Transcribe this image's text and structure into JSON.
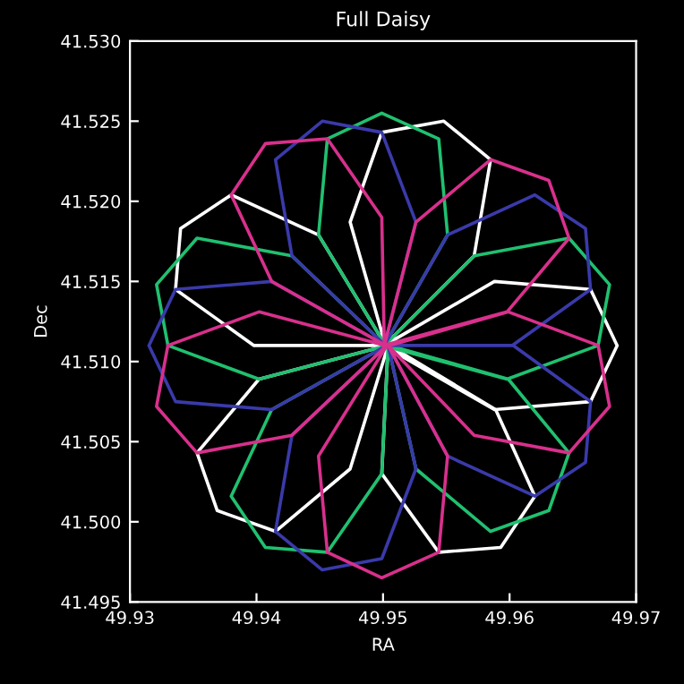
{
  "chart_data": {
    "type": "line",
    "title": "Full Daisy",
    "xlabel": "RA",
    "ylabel": "Dec",
    "xlim": [
      49.93,
      49.97
    ],
    "ylim": [
      41.495,
      41.53
    ],
    "xticks": [
      49.93,
      49.94,
      49.95,
      49.96,
      49.97
    ],
    "yticks": [
      41.495,
      {
        "value": 41.5,
        "label": "41.500"
      },
      41.505,
      {
        "value": 41.51,
        "label": "41.510"
      },
      41.515,
      {
        "value": 41.52,
        "label": "41.520"
      },
      41.525,
      {
        "value": 41.53,
        "label": "41.530"
      }
    ],
    "grid": false,
    "marker": "none",
    "line_style": "solid",
    "series": [
      {
        "color": "#ffffff",
        "x": [
          49.95,
          49.9588,
          49.9664,
          49.9685,
          49.9664,
          49.9588,
          49.9501,
          49.9572,
          49.9585,
          49.9548,
          49.9499,
          49.9474,
          49.9502,
          49.9449,
          49.938,
          49.934,
          49.9336,
          49.9398,
          49.9503,
          49.9402,
          49.9353,
          49.9369,
          49.9415,
          49.9474,
          49.9504,
          49.9499,
          49.9544,
          49.9593,
          49.962,
          49.9589,
          49.9505
        ],
        "values": [
          41.511,
          41.507,
          41.5075,
          41.511,
          41.5145,
          41.515,
          41.511,
          41.5166,
          41.5226,
          41.525,
          41.5243,
          41.5187,
          41.511,
          41.5179,
          41.5204,
          41.5183,
          41.5145,
          41.511,
          41.511,
          41.5089,
          41.5043,
          41.5007,
          41.4994,
          41.5033,
          41.511,
          41.503,
          41.4981,
          41.4984,
          41.5016,
          41.507,
          41.511
        ]
      },
      {
        "color": "#20c070",
        "x": [
          49.95,
          49.9598,
          49.967,
          49.9679,
          49.9647,
          49.9572,
          49.9501,
          49.9551,
          49.9544,
          49.9499,
          49.9456,
          49.9449,
          49.9502,
          49.9428,
          49.9353,
          49.9321,
          49.933,
          49.9402,
          49.9503,
          49.9412,
          49.938,
          49.9407,
          49.9456,
          49.9499,
          49.9504,
          49.9526,
          49.9585,
          49.9631,
          49.9647,
          49.9599,
          49.9505
        ],
        "values": [
          41.511,
          41.5089,
          41.511,
          41.5148,
          41.5177,
          41.5166,
          41.511,
          41.5179,
          41.5239,
          41.5255,
          41.5239,
          41.5179,
          41.511,
          41.5166,
          41.5177,
          41.5148,
          41.511,
          41.5089,
          41.511,
          41.507,
          41.5016,
          41.4984,
          41.4981,
          41.503,
          41.511,
          41.5033,
          41.4994,
          41.5007,
          41.5043,
          41.5089,
          41.511
        ]
      },
      {
        "color": "#3a3aaa",
        "x": [
          49.95,
          49.9602,
          49.9664,
          49.966,
          49.962,
          49.9551,
          49.9501,
          49.9526,
          49.9499,
          49.9452,
          49.9415,
          49.9428,
          49.9502,
          49.9412,
          49.9336,
          49.9315,
          49.9336,
          49.9412,
          49.9503,
          49.9428,
          49.9415,
          49.9452,
          49.9499,
          49.9526,
          49.9504,
          49.9551,
          49.962,
          49.966,
          49.9664,
          49.9603,
          49.9505
        ],
        "values": [
          41.511,
          41.511,
          41.5145,
          41.5183,
          41.5204,
          41.5179,
          41.511,
          41.5187,
          41.5243,
          41.525,
          41.5226,
          41.5166,
          41.511,
          41.515,
          41.5145,
          41.511,
          41.5075,
          41.507,
          41.511,
          41.5054,
          41.4994,
          41.497,
          41.4977,
          41.5033,
          41.511,
          41.5041,
          41.5016,
          41.5037,
          41.5075,
          41.511,
          41.511
        ]
      },
      {
        "color": "#d8308c",
        "x": [
          49.95,
          49.9598,
          49.9647,
          49.9631,
          49.9585,
          49.9526,
          49.9501,
          49.9499,
          49.9456,
          49.9407,
          49.938,
          49.9412,
          49.9502,
          49.9402,
          49.933,
          49.9321,
          49.9353,
          49.9428,
          49.9503,
          49.9449,
          49.9456,
          49.9499,
          49.9544,
          49.9551,
          49.9504,
          49.9572,
          49.9647,
          49.9679,
          49.967,
          49.9599,
          49.9505
        ],
        "values": [
          41.511,
          41.5131,
          41.5177,
          41.5213,
          41.5226,
          41.5187,
          41.511,
          41.519,
          41.5239,
          41.5236,
          41.5204,
          41.515,
          41.511,
          41.5131,
          41.511,
          41.5072,
          41.5043,
          41.5054,
          41.511,
          41.5041,
          41.4981,
          41.4965,
          41.4981,
          41.5041,
          41.511,
          41.5054,
          41.5043,
          41.5072,
          41.511,
          41.5131,
          41.511
        ]
      }
    ]
  }
}
